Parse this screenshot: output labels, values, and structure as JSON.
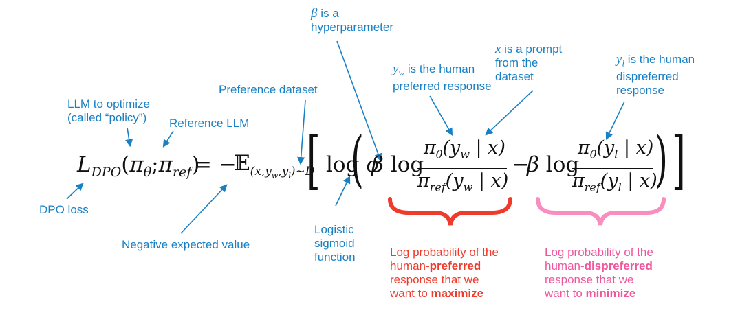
{
  "colors": {
    "annotation": "#1a80c4",
    "preferred": "#ef3b2c",
    "dispreferred": "#f0569c",
    "equation": "#111111"
  },
  "labels": {
    "beta": {
      "symbol": "β",
      "line1": " is a",
      "line2": "hyperparameter"
    },
    "x_prompt": {
      "symbol": "x",
      "line1": " is a prompt",
      "line2": "from the",
      "line3": "dataset"
    },
    "yw": {
      "symbol": "y",
      "sub": "w",
      "line1": " is the human",
      "line2": "preferred response"
    },
    "yl": {
      "symbol": "y",
      "sub": "l",
      "line1": " is the human",
      "line2": "dispreferred",
      "line3": "response"
    },
    "preference_dataset": "Preference dataset",
    "llm_optimize": {
      "line1": "LLM to optimize",
      "line2": "(called “policy”)"
    },
    "reference_llm": "Reference LLM",
    "dpo_loss": "DPO loss",
    "negative_expected": "Negative expected value",
    "logistic": {
      "line1": "Logistic",
      "line2": "sigmoid",
      "line3": "function"
    },
    "log_prob_preferred": {
      "line1": "Log probability of the",
      "line2a": "human-",
      "line2b": "preferred",
      "line3": "response that we",
      "line4a": "want to ",
      "line4b": "maximize"
    },
    "log_prob_dispreferred": {
      "line1": "Log probability of the",
      "line2a": "human-",
      "line2b": "dispreferred",
      "line3": "response that we",
      "line4a": "want to ",
      "line4b": "minimize"
    }
  },
  "equation": {
    "L": "L",
    "L_sub": "DPO",
    "open": "(",
    "pi": "π",
    "theta": "θ",
    "semi": ";",
    "ref": "ref",
    "close": ")",
    "eq_minus": "= −",
    "E": "𝔼",
    "E_sub": "(x,y",
    "E_sub_w": "w",
    "E_sub_mid": ",y",
    "E_sub_l": "l",
    "E_sub_end": ")∼D",
    "lbrack": "[",
    "rbrack": "]",
    "lparen": "(",
    "rparen": ")",
    "log": "log",
    "sigma": "σ",
    "beta": "β",
    "minus": "−",
    "num1": "(y",
    "num1_sub": "w",
    "num1_end": " | x)",
    "den1": "(y",
    "den1_sub": "w",
    "den1_end": " | x)",
    "num2": "(y",
    "num2_sub": "l",
    "num2_end": " | x)",
    "den2": "(y",
    "den2_sub": "l",
    "den2_end": " | x)"
  }
}
